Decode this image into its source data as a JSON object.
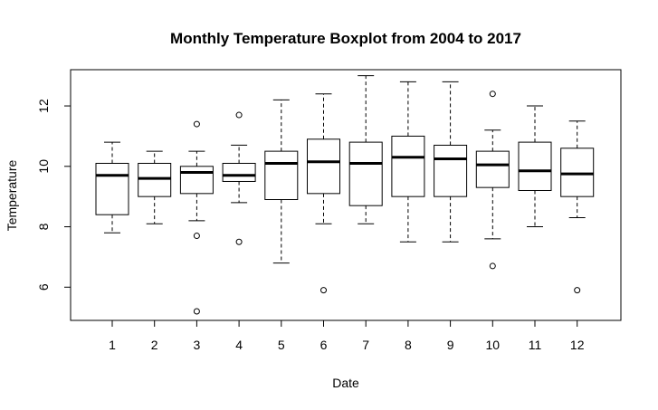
{
  "chart_data": {
    "type": "boxplot",
    "title": "Monthly Temperature Boxplot from 2004 to 2017",
    "xlabel": "Date",
    "ylabel": "Temperature",
    "categories": [
      "1",
      "2",
      "3",
      "4",
      "5",
      "6",
      "7",
      "8",
      "9",
      "10",
      "11",
      "12"
    ],
    "yticks": [
      "6",
      "8",
      "10",
      "12"
    ],
    "ylim": [
      4.9,
      13.2
    ],
    "grid": false,
    "boxes": [
      {
        "category": "1",
        "whisker_low": 7.8,
        "q1": 8.4,
        "median": 9.7,
        "q3": 10.1,
        "whisker_high": 10.8,
        "outliers": []
      },
      {
        "category": "2",
        "whisker_low": 8.1,
        "q1": 9.0,
        "median": 9.6,
        "q3": 10.1,
        "whisker_high": 10.5,
        "outliers": []
      },
      {
        "category": "3",
        "whisker_low": 8.2,
        "q1": 9.1,
        "median": 9.8,
        "q3": 10.0,
        "whisker_high": 10.5,
        "outliers": [
          11.4,
          7.7,
          5.2
        ]
      },
      {
        "category": "4",
        "whisker_low": 8.8,
        "q1": 9.5,
        "median": 9.7,
        "q3": 10.1,
        "whisker_high": 10.7,
        "outliers": [
          11.7,
          7.5
        ]
      },
      {
        "category": "5",
        "whisker_low": 6.8,
        "q1": 8.9,
        "median": 10.1,
        "q3": 10.5,
        "whisker_high": 12.2,
        "outliers": []
      },
      {
        "category": "6",
        "whisker_low": 8.1,
        "q1": 9.1,
        "median": 10.15,
        "q3": 10.9,
        "whisker_high": 12.4,
        "outliers": [
          5.9
        ]
      },
      {
        "category": "7",
        "whisker_low": 8.1,
        "q1": 8.7,
        "median": 10.1,
        "q3": 10.8,
        "whisker_high": 13.0,
        "outliers": []
      },
      {
        "category": "8",
        "whisker_low": 7.5,
        "q1": 9.0,
        "median": 10.3,
        "q3": 11.0,
        "whisker_high": 12.8,
        "outliers": []
      },
      {
        "category": "9",
        "whisker_low": 7.5,
        "q1": 9.0,
        "median": 10.25,
        "q3": 10.7,
        "whisker_high": 12.8,
        "outliers": []
      },
      {
        "category": "10",
        "whisker_low": 7.6,
        "q1": 9.3,
        "median": 10.05,
        "q3": 10.5,
        "whisker_high": 11.2,
        "outliers": [
          12.4,
          6.7
        ]
      },
      {
        "category": "11",
        "whisker_low": 8.0,
        "q1": 9.2,
        "median": 9.85,
        "q3": 10.8,
        "whisker_high": 12.0,
        "outliers": []
      },
      {
        "category": "12",
        "whisker_low": 8.3,
        "q1": 9.0,
        "median": 9.75,
        "q3": 10.6,
        "whisker_high": 11.5,
        "outliers": [
          5.9
        ]
      }
    ]
  }
}
